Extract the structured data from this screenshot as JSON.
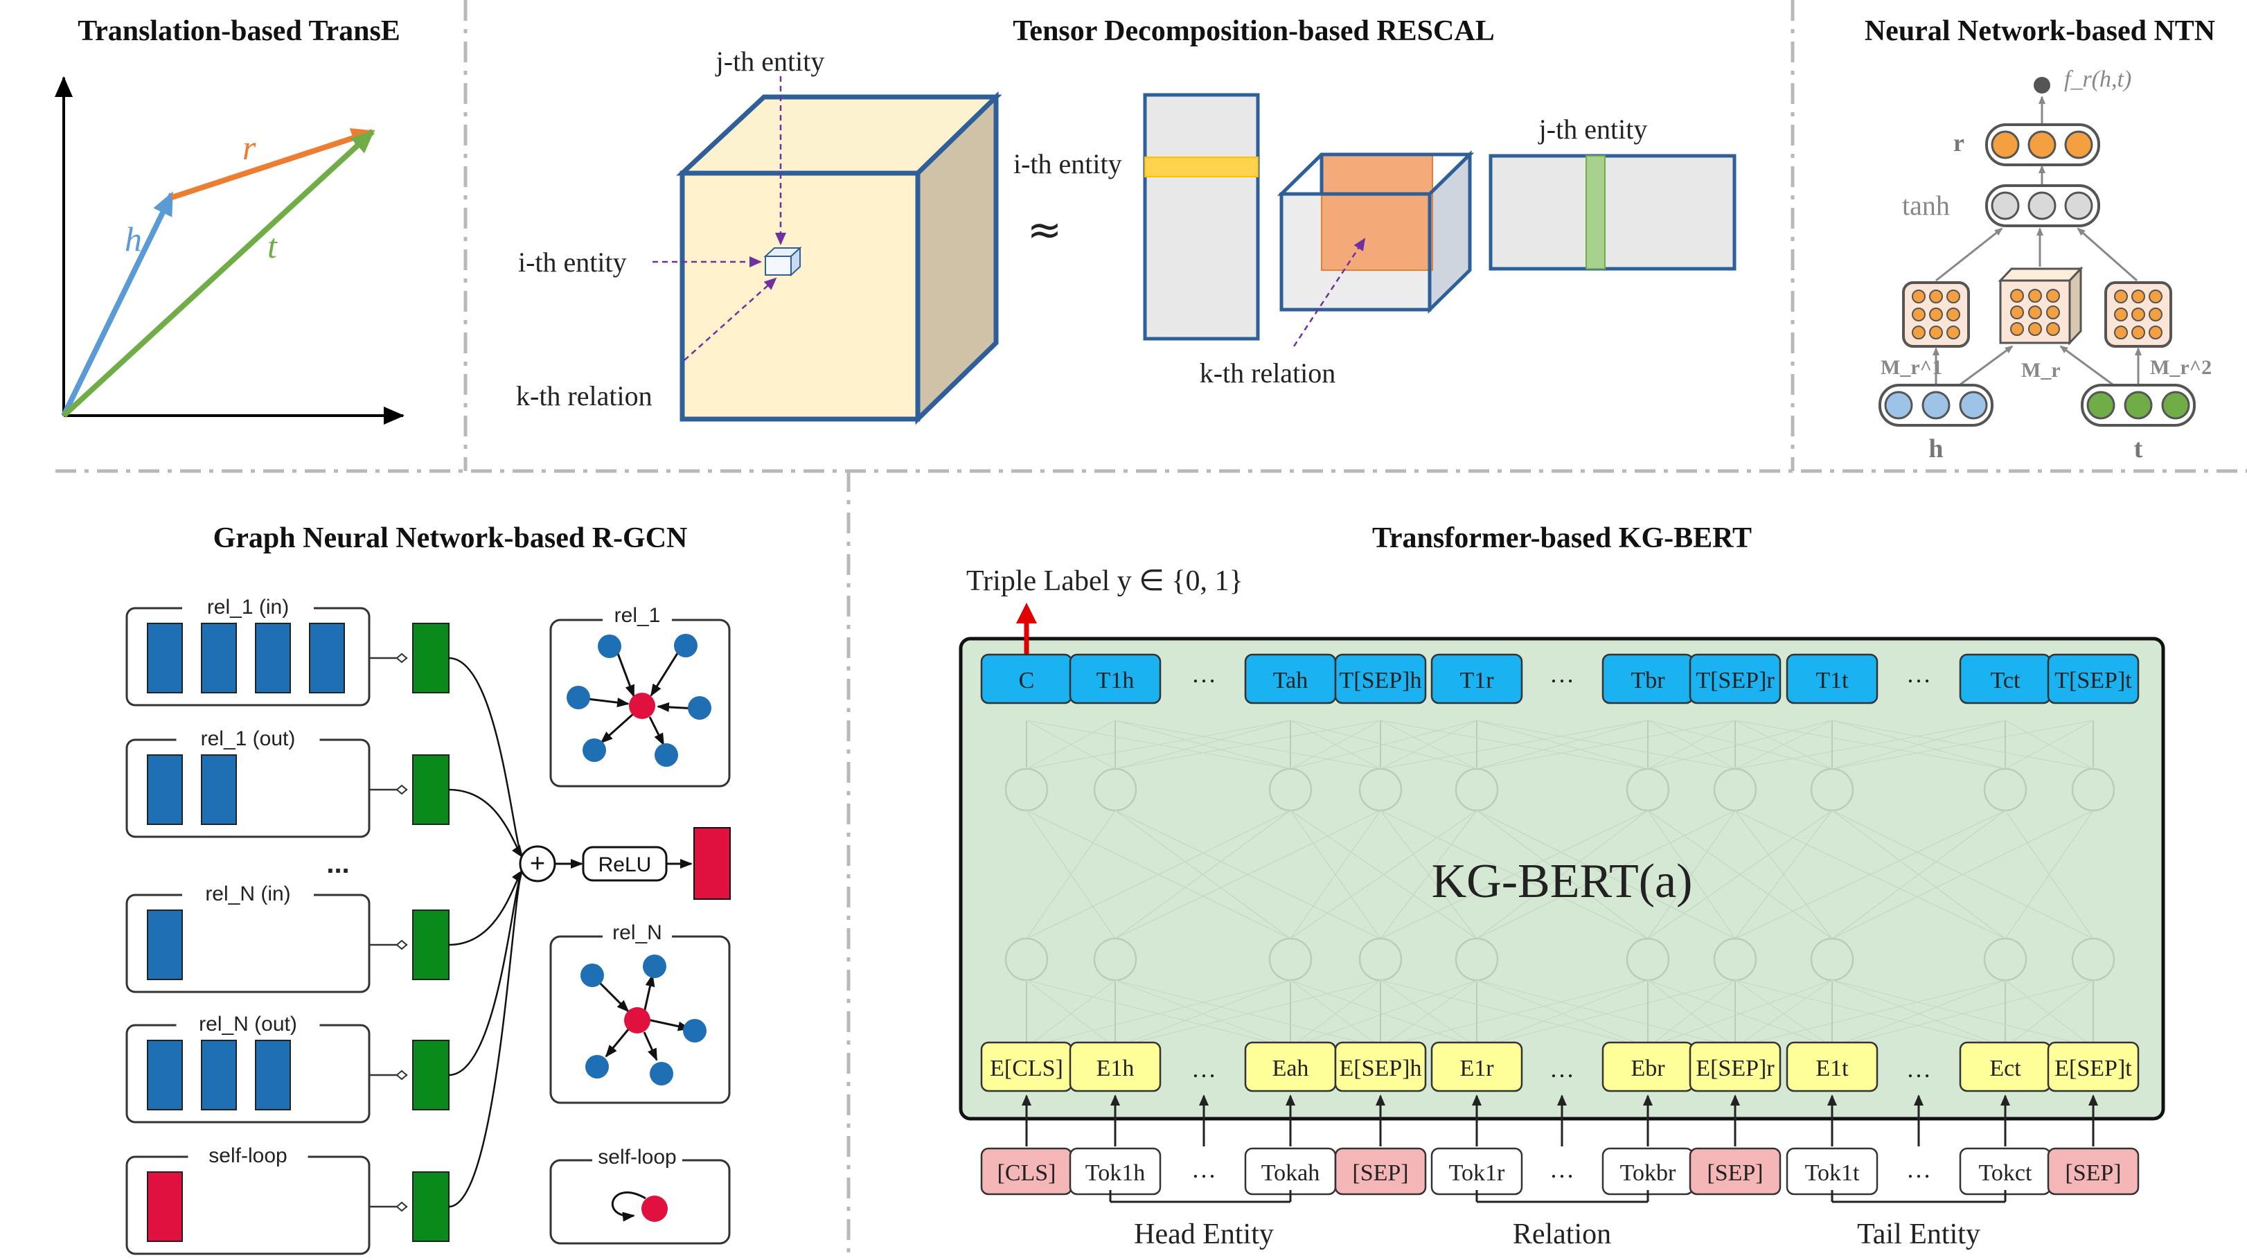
{
  "panels": {
    "transe": {
      "title": "Translation-based TransE",
      "vec_h": "h",
      "vec_r": "r",
      "vec_t": "t",
      "colors": {
        "h": "#5b9bd5",
        "r": "#ed7d31",
        "t": "#70ad47"
      }
    },
    "rescal": {
      "title": "Tensor Decomposition-based RESCAL",
      "j_entity": "j-th entity",
      "i_entity": "i-th entity",
      "k_relation": "k-th relation",
      "approx": "≈",
      "i_entity_2": "i-th entity",
      "k_relation_2": "k-th relation",
      "j_entity_2": "j-th entity"
    },
    "ntn": {
      "title": "Neural Network-based NTN",
      "output": "f_r(h,t)",
      "r_label": "r",
      "tanh_label": "tanh",
      "m1": "M_r^1",
      "m_mid": "M_r",
      "m2": "M_r^2",
      "h_label": "h",
      "t_label": "t"
    },
    "rgcn": {
      "title": "Graph Neural Network-based R-GCN",
      "groups": [
        "rel_1 (in)",
        "rel_1 (out)",
        "rel_N (in)",
        "rel_N (out)",
        "self-loop"
      ],
      "ellipsis": "...",
      "relu": "ReLU",
      "side": [
        "rel_1",
        "rel_N",
        "self-loop"
      ],
      "plus": "+"
    },
    "kgbert": {
      "title": "Transformer-based KG-BERT",
      "triple_label": "Triple Label y ∈ {0, 1}",
      "model_name": "KG-BERT(a)",
      "top_tokens": [
        "C",
        "T1h",
        "…",
        "Tah",
        "T[SEP]h",
        "T1r",
        "…",
        "Tbr",
        "T[SEP]r",
        "T1t",
        "…",
        "Tct",
        "T[SEP]t"
      ],
      "emb_tokens": [
        "E[CLS]",
        "E1h",
        "…",
        "Eah",
        "E[SEP]h",
        "E1r",
        "…",
        "Ebr",
        "E[SEP]r",
        "E1t",
        "…",
        "Ect",
        "E[SEP]t"
      ],
      "input_tokens": [
        "[CLS]",
        "Tok1h",
        "…",
        "Tokah",
        "[SEP]",
        "Tok1r",
        "…",
        "Tokbr",
        "[SEP]",
        "Tok1t",
        "…",
        "Tokct",
        "[SEP]"
      ],
      "groups": [
        "Head Entity",
        "Relation",
        "Tail Entity"
      ]
    }
  }
}
